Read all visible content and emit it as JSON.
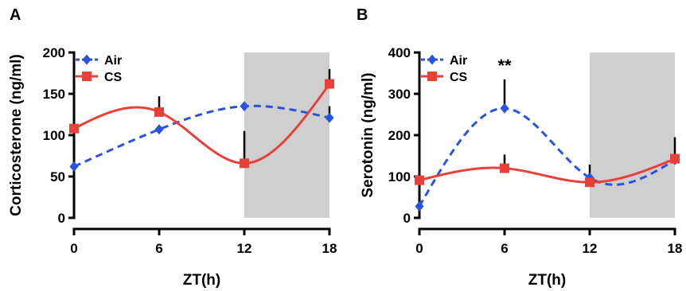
{
  "colors": {
    "air": "#2a52e0",
    "cs": "#e8413a",
    "dark_phase": "#cfcfcf"
  },
  "chart_data": [
    {
      "panel": "A",
      "type": "line",
      "xlabel": "ZT(h)",
      "ylabel": "Corticosterone (ng/ml)",
      "x": [
        0,
        6,
        12,
        18
      ],
      "x_ticks": [
        "0",
        "6",
        "12",
        "18"
      ],
      "xlim": [
        0,
        18
      ],
      "ylim": [
        0,
        200
      ],
      "y_ticks": [
        "0",
        "50",
        "100",
        "150",
        "200"
      ],
      "dark_phase": [
        12,
        18
      ],
      "legend_position": "top-left",
      "series": [
        {
          "name": "Air",
          "marker": "diamond",
          "line": "dashed",
          "color": "#2a52e0",
          "values": [
            62,
            107,
            135,
            121
          ],
          "errors": [
            24,
            0,
            0,
            14
          ]
        },
        {
          "name": "CS",
          "marker": "square",
          "line": "solid",
          "color": "#e8413a",
          "values": [
            108,
            128,
            66,
            162
          ],
          "errors": [
            27,
            19,
            39,
            18
          ]
        }
      ],
      "annotations": []
    },
    {
      "panel": "B",
      "type": "line",
      "xlabel": "ZT(h)",
      "ylabel": "Serotonin (ng/ml)",
      "x": [
        0,
        6,
        12,
        18
      ],
      "x_ticks": [
        "0",
        "6",
        "12",
        "18"
      ],
      "xlim": [
        0,
        18
      ],
      "ylim": [
        0,
        400
      ],
      "y_ticks": [
        "0",
        "100",
        "200",
        "300",
        "400"
      ],
      "dark_phase": [
        12,
        18
      ],
      "legend_position": "top-left",
      "series": [
        {
          "name": "Air",
          "marker": "diamond",
          "line": "dashed",
          "color": "#2a52e0",
          "values": [
            28,
            265,
            97,
            140
          ],
          "errors": [
            0,
            70,
            32,
            0
          ]
        },
        {
          "name": "CS",
          "marker": "square",
          "line": "solid",
          "color": "#e8413a",
          "values": [
            91,
            120,
            86,
            143
          ],
          "errors": [
            67,
            33,
            0,
            52
          ]
        }
      ],
      "annotations": [
        {
          "text": "**",
          "x": 6,
          "y": 335
        }
      ]
    }
  ]
}
